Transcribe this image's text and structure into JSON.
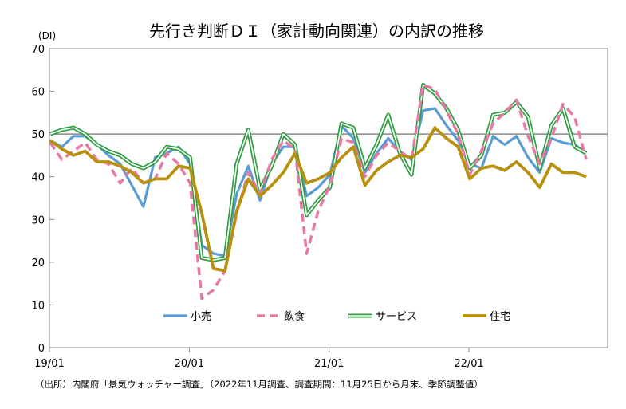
{
  "chart_data": {
    "type": "line",
    "title": "先行き判断ＤＩ（家計動向関連）の内訳の推移",
    "unit_label": "(DI)",
    "source_note": "（出所）内閣府「景気ウォッチャー調査」（2022年11月調査、調査期間：11月25日から月末、季節調整値）",
    "ylim": [
      0,
      70
    ],
    "yticks": [
      "0",
      "10",
      "20",
      "30",
      "40",
      "50",
      "60",
      "70"
    ],
    "x_tick_labels": [
      "19/01",
      "20/01",
      "21/01",
      "22/01"
    ],
    "x_tick_index": [
      0,
      12,
      24,
      36
    ],
    "reference_line": 50,
    "grid": false,
    "legend_position": "bottom-center",
    "x": [
      "19/01",
      "19/02",
      "19/03",
      "19/04",
      "19/05",
      "19/06",
      "19/07",
      "19/08",
      "19/09",
      "19/10",
      "19/11",
      "19/12",
      "20/01",
      "20/02",
      "20/03",
      "20/04",
      "20/05",
      "20/06",
      "20/07",
      "20/08",
      "20/09",
      "20/10",
      "20/11",
      "20/12",
      "21/01",
      "21/02",
      "21/03",
      "21/04",
      "21/05",
      "21/06",
      "21/07",
      "21/08",
      "21/09",
      "21/10",
      "21/11",
      "21/12",
      "22/01",
      "22/02",
      "22/03",
      "22/04",
      "22/05",
      "22/06",
      "22/07",
      "22/08",
      "22/09",
      "22/10",
      "22/11"
    ],
    "series": [
      {
        "name": "小売",
        "color": "#5b9bd5",
        "style": "solid",
        "values": [
          48.5,
          47.0,
          49.5,
          49.5,
          47.5,
          45.0,
          43.0,
          38.0,
          33.0,
          44.5,
          45.5,
          47.0,
          43.0,
          24.0,
          22.0,
          21.5,
          36.0,
          42.5,
          34.5,
          43.0,
          47.0,
          47.0,
          35.5,
          37.5,
          40.5,
          52.0,
          49.0,
          41.0,
          45.5,
          49.0,
          46.0,
          44.0,
          55.5,
          56.0,
          52.0,
          48.5,
          43.0,
          42.0,
          49.5,
          47.5,
          49.5,
          44.5,
          41.0,
          49.0,
          48.0,
          47.5,
          45.5
        ]
      },
      {
        "name": "飲食",
        "color": "#e879a6",
        "style": "dashed",
        "values": [
          48.0,
          44.0,
          46.0,
          48.0,
          44.0,
          43.0,
          38.5,
          42.0,
          38.5,
          39.5,
          45.5,
          43.0,
          38.5,
          11.5,
          13.5,
          18.0,
          31.5,
          41.0,
          36.0,
          44.0,
          48.5,
          46.5,
          22.0,
          32.0,
          38.0,
          49.0,
          48.0,
          40.0,
          45.0,
          48.0,
          46.0,
          44.0,
          61.5,
          60.5,
          55.5,
          50.0,
          40.5,
          46.0,
          52.5,
          55.0,
          58.0,
          49.5,
          43.0,
          49.0,
          57.0,
          54.0,
          44.0
        ]
      },
      {
        "name": "サービス",
        "color": "#2e9e40",
        "style": "double",
        "values": [
          50.0,
          51.0,
          51.5,
          50.0,
          47.5,
          46.0,
          45.0,
          43.0,
          42.0,
          43.5,
          47.0,
          46.5,
          44.5,
          21.0,
          20.5,
          21.0,
          43.0,
          51.0,
          37.0,
          42.5,
          50.0,
          47.5,
          31.0,
          34.5,
          37.5,
          52.5,
          51.5,
          42.0,
          47.5,
          54.5,
          45.5,
          40.5,
          61.5,
          59.5,
          56.0,
          51.0,
          42.0,
          45.0,
          54.5,
          55.0,
          57.5,
          54.0,
          42.0,
          52.0,
          56.0,
          47.0,
          45.5
        ]
      },
      {
        "name": "住宅",
        "color": "#b8900e",
        "style": "solid-thick",
        "values": [
          48.5,
          46.5,
          45.0,
          46.0,
          43.5,
          43.5,
          42.5,
          41.0,
          38.5,
          39.5,
          39.5,
          42.5,
          42.0,
          31.5,
          18.5,
          18.0,
          32.0,
          39.5,
          35.5,
          38.0,
          41.0,
          45.5,
          38.5,
          39.5,
          41.0,
          44.5,
          47.0,
          38.0,
          41.5,
          43.5,
          45.0,
          44.5,
          46.5,
          51.5,
          49.0,
          47.0,
          39.5,
          42.0,
          42.5,
          41.5,
          43.5,
          41.0,
          37.5,
          43.0,
          41.0,
          41.0,
          40.0
        ]
      }
    ]
  }
}
